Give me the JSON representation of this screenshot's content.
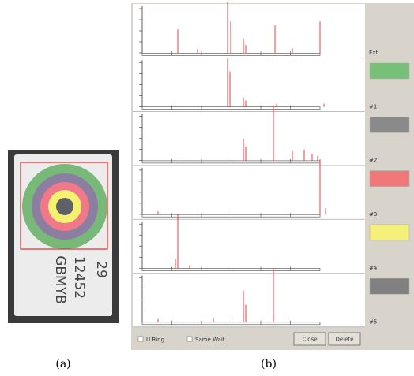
{
  "figure": {
    "panel_a_label": "(a)",
    "panel_b_label": "(b)",
    "tag_text": [
      "29",
      "12452",
      "GBMYB"
    ],
    "channel_labels": [
      "Ext",
      "#1",
      "#2",
      "#3",
      "#4",
      "#5"
    ],
    "checkboxes": [
      "U Ring",
      "Same Wait"
    ],
    "buttons": [
      "Close",
      "Delete"
    ]
  }
}
